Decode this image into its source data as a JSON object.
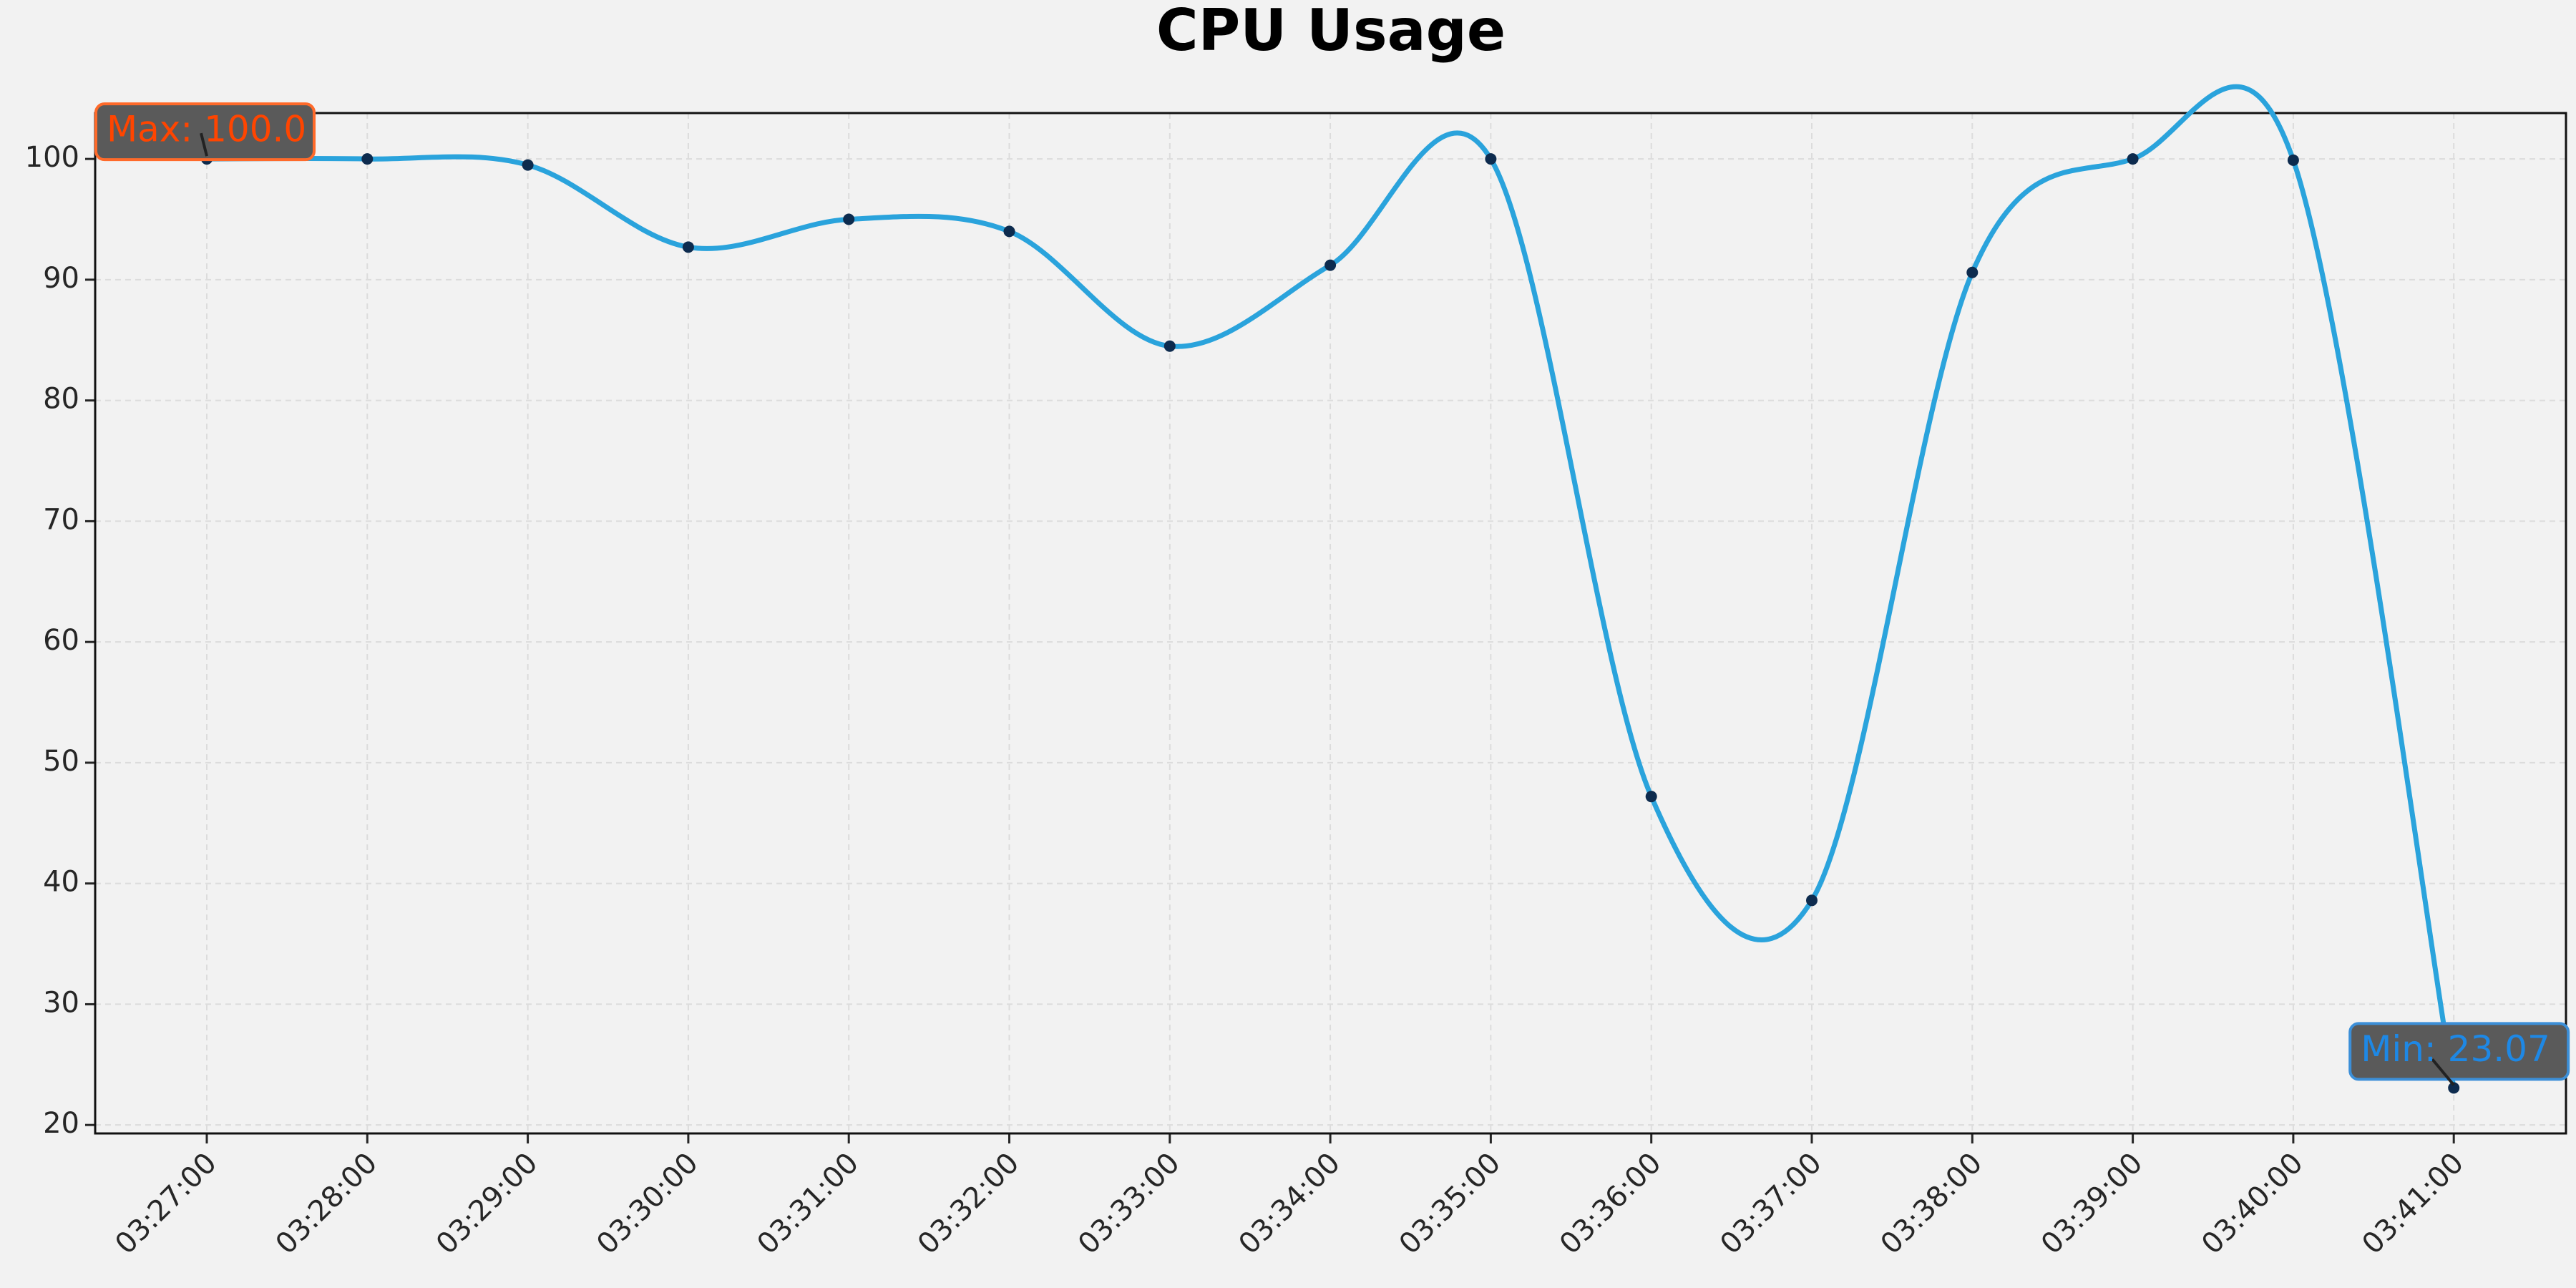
{
  "chart_data": {
    "type": "line",
    "title": "CPU Usage",
    "x": [
      "03:27:00",
      "03:28:00",
      "03:29:00",
      "03:30:00",
      "03:31:00",
      "03:32:00",
      "03:33:00",
      "03:34:00",
      "03:35:00",
      "03:36:00",
      "03:37:00",
      "03:38:00",
      "03:39:00",
      "03:40:00",
      "03:41:00"
    ],
    "values": [
      100,
      100,
      99.5,
      92.7,
      95,
      94,
      84.5,
      91.2,
      100,
      47.2,
      38.6,
      90.6,
      100,
      99.9,
      23.07
    ],
    "color": "#2aa3dc",
    "marker_color": "#0d2b4e",
    "ylim": [
      19.3,
      103.8
    ],
    "yticks": [
      20,
      30,
      40,
      50,
      60,
      70,
      80,
      90,
      100
    ],
    "grid": true,
    "annotations": [
      {
        "text": "Max: 100.0",
        "color": "#ff4500",
        "border": "#ff6a2a"
      },
      {
        "text": "Min: 23.07",
        "color": "#1e88e5",
        "border": "#3c8fd8"
      }
    ]
  }
}
